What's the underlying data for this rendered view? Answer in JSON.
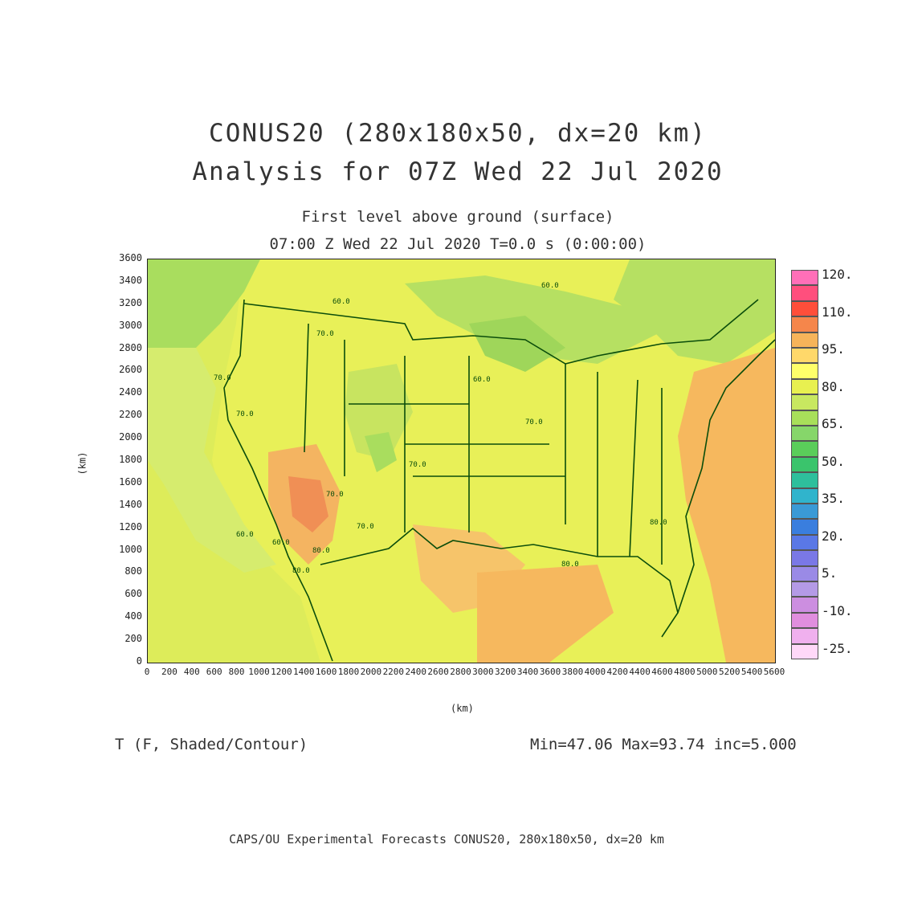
{
  "header": {
    "title_line1": "CONUS20 (280x180x50, dx=20 km)",
    "title_line2": "Analysis for 07Z Wed 22 Jul 2020",
    "subtitle_line1": "First level above ground (surface)",
    "subtitle_line2": "07:00 Z Wed 22 Jul 2020    T=0.0 s (0:00:00)"
  },
  "axes": {
    "x_label": "(km)",
    "y_label": "(km)",
    "x_ticks": [
      "0",
      "200",
      "400",
      "600",
      "800",
      "1000",
      "1200",
      "1400",
      "1600",
      "1800",
      "2000",
      "2200",
      "2400",
      "2600",
      "2800",
      "3000",
      "3200",
      "3400",
      "3600",
      "3800",
      "4000",
      "4200",
      "4400",
      "4600",
      "4800",
      "5000",
      "5200",
      "5400",
      "5600"
    ],
    "y_ticks": [
      "0",
      "200",
      "400",
      "600",
      "800",
      "1000",
      "1200",
      "1400",
      "1600",
      "1800",
      "2000",
      "2200",
      "2400",
      "2600",
      "2800",
      "3000",
      "3200",
      "3400",
      "3600"
    ],
    "x_range_km": [
      0,
      5600
    ],
    "y_range_km": [
      0,
      3600
    ]
  },
  "map": {
    "contour_labels": [
      "70.0",
      "70.0",
      "70.0",
      "70.0",
      "70.0",
      "70.0",
      "70.0",
      "60.0",
      "60.0",
      "60.0",
      "60.0",
      "60.0",
      "80.0",
      "80.0",
      "80.0",
      "80.0"
    ]
  },
  "colorbar": {
    "labels": [
      "120.",
      "110.",
      "95.",
      "80.",
      "65.",
      "50.",
      "35.",
      "20.",
      "5.",
      "-10.",
      "-25."
    ],
    "colors": [
      "#ff6fb8",
      "#ff4f7d",
      "#ff4e3a",
      "#f5864b",
      "#f6b45a",
      "#ffd86a",
      "#ffff6a",
      "#e8f050",
      "#c8e860",
      "#a8df5a",
      "#86d66a",
      "#5acd5a",
      "#3ac46c",
      "#2ebf9c",
      "#30b4cc",
      "#3a9ad6",
      "#3a7ede",
      "#5a78e6",
      "#7a78e6",
      "#9a8ae6",
      "#b49ae6",
      "#cc8ee0",
      "#e08ede",
      "#f0b0ee",
      "#ffd8f8"
    ]
  },
  "footer": {
    "var_label": "T (F, Shaded/Contour)",
    "stats": "Min=47.06  Max=93.74  inc=5.000",
    "credit": "CAPS/OU Experimental Forecasts  CONUS20, 280x180x50, dx=20 km"
  }
}
